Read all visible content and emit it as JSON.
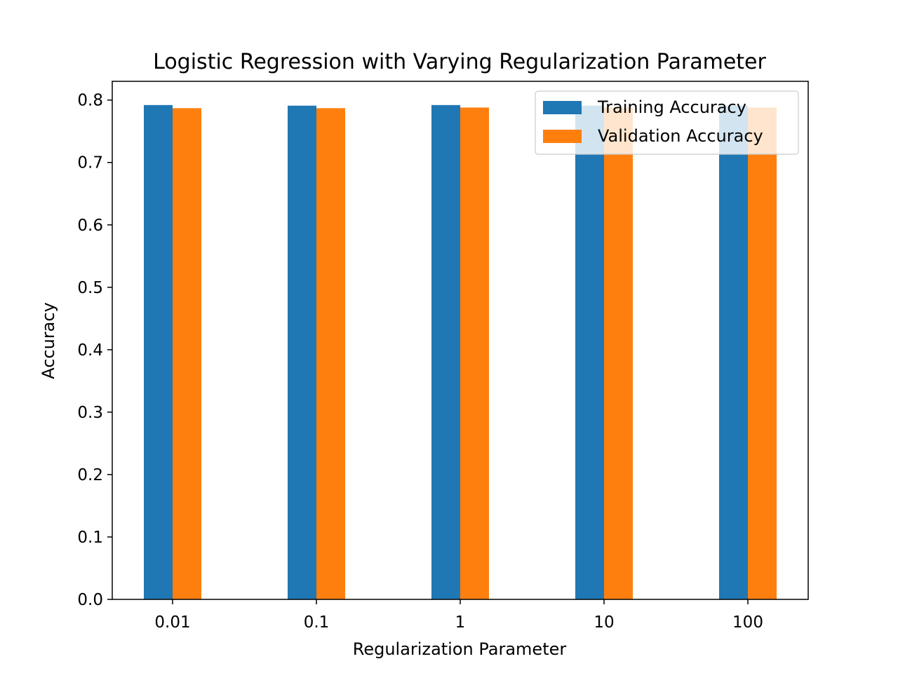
{
  "chart_data": {
    "type": "bar",
    "title": "Logistic Regression with Varying Regularization Parameter",
    "xlabel": "Regularization Parameter",
    "ylabel": "Accuracy",
    "categories": [
      "0.01",
      "0.1",
      "1",
      "10",
      "100"
    ],
    "series": [
      {
        "name": "Training Accuracy",
        "color": "#1f77b4",
        "values": [
          0.792,
          0.791,
          0.792,
          0.791,
          0.791
        ]
      },
      {
        "name": "Validation Accuracy",
        "color": "#ff7f0e",
        "values": [
          0.787,
          0.787,
          0.788,
          0.788,
          0.788
        ]
      }
    ],
    "ylim": [
      0,
      0.83
    ],
    "yticks": [
      0.0,
      0.1,
      0.2,
      0.3,
      0.4,
      0.5,
      0.6,
      0.7,
      0.8
    ],
    "ytick_labels": [
      "0.0",
      "0.1",
      "0.2",
      "0.3",
      "0.4",
      "0.5",
      "0.6",
      "0.7",
      "0.8"
    ],
    "legend": "top-right",
    "grid": false
  }
}
